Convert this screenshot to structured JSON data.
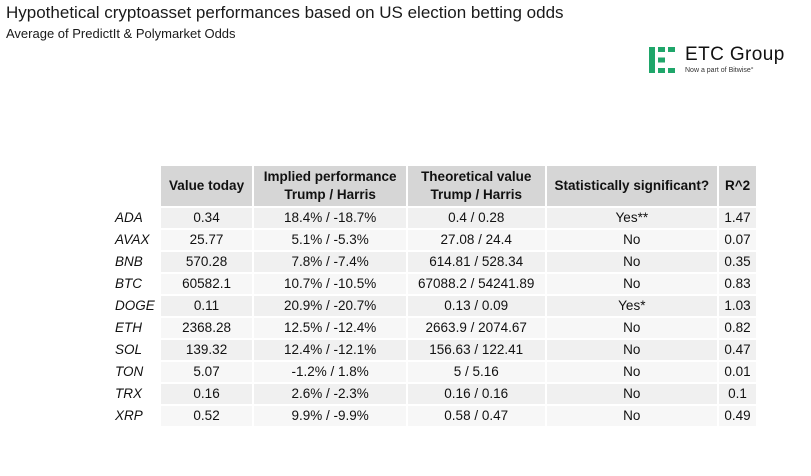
{
  "header": {
    "title": "Hypothetical cryptoasset performances based on US election betting odds",
    "subtitle": "Average of PredictIt & Polymarket Odds"
  },
  "logo": {
    "name": "ETC Group",
    "tagline": "Now a part of Bitwise°",
    "color": "#1fa66a"
  },
  "chart_data": {
    "type": "table",
    "columns": [
      {
        "line1": "",
        "line2": ""
      },
      {
        "line1": "Value today",
        "line2": ""
      },
      {
        "line1": "Implied performance",
        "line2": "Trump / Harris"
      },
      {
        "line1": "Theoretical value",
        "line2": "Trump / Harris"
      },
      {
        "line1": "Statistically significant?",
        "line2": ""
      },
      {
        "line1": "R^2",
        "line2": ""
      }
    ],
    "rows": [
      {
        "asset": "ADA",
        "value_today": "0.34",
        "implied": "18.4% / -18.7%",
        "theoretical": "0.4 / 0.28",
        "significant": "Yes**",
        "r2": "1.47"
      },
      {
        "asset": "AVAX",
        "value_today": "25.77",
        "implied": "5.1% / -5.3%",
        "theoretical": "27.08 / 24.4",
        "significant": "No",
        "r2": "0.07"
      },
      {
        "asset": "BNB",
        "value_today": "570.28",
        "implied": "7.8% / -7.4%",
        "theoretical": "614.81 / 528.34",
        "significant": "No",
        "r2": "0.35"
      },
      {
        "asset": "BTC",
        "value_today": "60582.1",
        "implied": "10.7% / -10.5%",
        "theoretical": "67088.2 / 54241.89",
        "significant": "No",
        "r2": "0.83"
      },
      {
        "asset": "DOGE",
        "value_today": "0.11",
        "implied": "20.9% / -20.7%",
        "theoretical": "0.13 / 0.09",
        "significant": "Yes*",
        "r2": "1.03"
      },
      {
        "asset": "ETH",
        "value_today": "2368.28",
        "implied": "12.5% / -12.4%",
        "theoretical": "2663.9 / 2074.67",
        "significant": "No",
        "r2": "0.82"
      },
      {
        "asset": "SOL",
        "value_today": "139.32",
        "implied": "12.4% / -12.1%",
        "theoretical": "156.63 / 122.41",
        "significant": "No",
        "r2": "0.47"
      },
      {
        "asset": "TON",
        "value_today": "5.07",
        "implied": "-1.2% / 1.8%",
        "theoretical": "5 / 5.16",
        "significant": "No",
        "r2": "0.01"
      },
      {
        "asset": "TRX",
        "value_today": "0.16",
        "implied": "2.6% / -2.3%",
        "theoretical": "0.16 / 0.16",
        "significant": "No",
        "r2": "0.1"
      },
      {
        "asset": "XRP",
        "value_today": "0.52",
        "implied": "9.9% / -9.9%",
        "theoretical": "0.58 / 0.47",
        "significant": "No",
        "r2": "0.49"
      }
    ]
  }
}
